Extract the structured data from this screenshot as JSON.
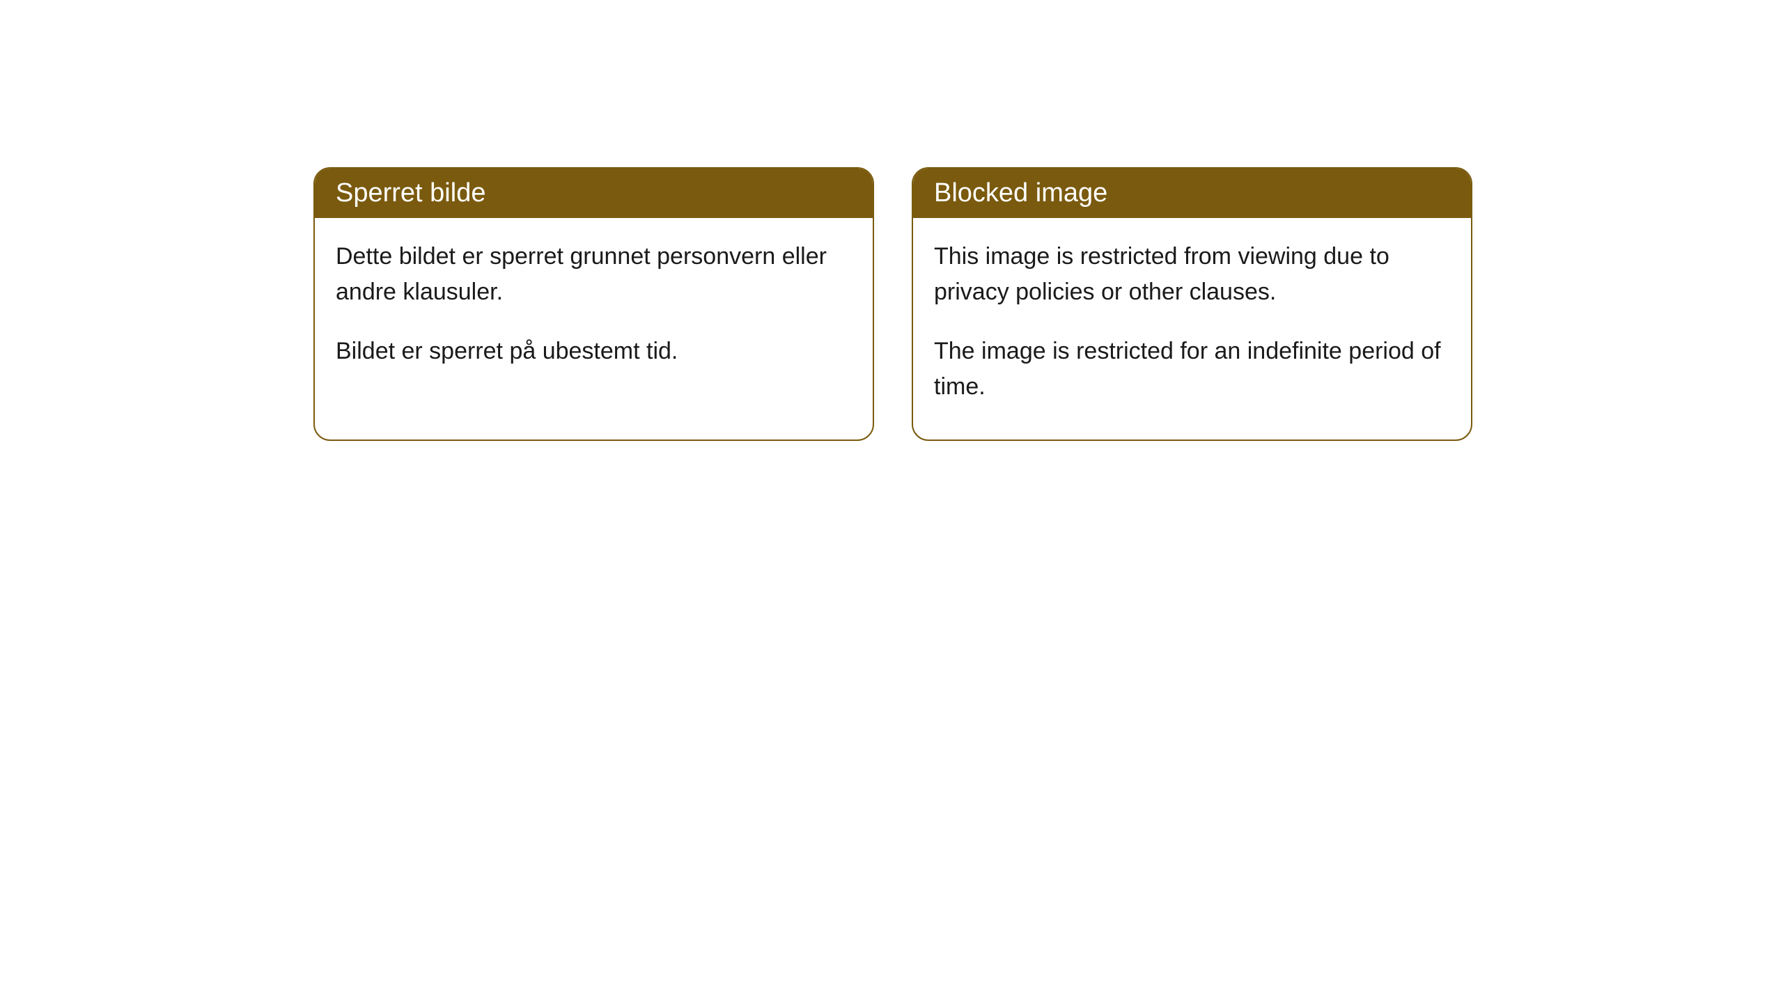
{
  "colors": {
    "header_bg": "#7a5a0e",
    "header_text": "#ffffff",
    "border": "#7a5a0e",
    "body_bg": "#ffffff",
    "body_text": "#1a1a1a"
  },
  "cards": [
    {
      "title": "Sperret bilde",
      "paragraph1": "Dette bildet er sperret grunnet personvern eller andre klausuler.",
      "paragraph2": "Bildet er sperret på ubestemt tid."
    },
    {
      "title": "Blocked image",
      "paragraph1": "This image is restricted from viewing due to privacy policies or other clauses.",
      "paragraph2": "The image is restricted for an indefinite period of time."
    }
  ]
}
